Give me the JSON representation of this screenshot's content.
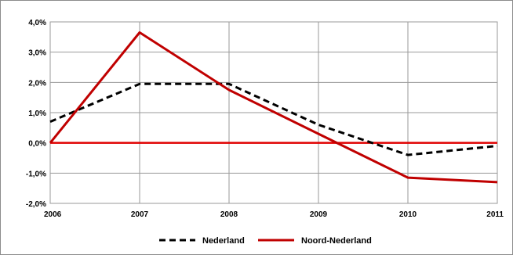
{
  "chart_data": {
    "type": "line",
    "x": [
      "2006",
      "2007",
      "2008",
      "2009",
      "2010",
      "2011"
    ],
    "ylim": [
      -2.0,
      4.0
    ],
    "yticks": [
      "4,0%",
      "3,0%",
      "2,0%",
      "1,0%",
      "0,0%",
      "-1,0%",
      "-2,0%"
    ],
    "ytick_values": [
      4.0,
      3.0,
      2.0,
      1.0,
      0.0,
      -1.0,
      -2.0
    ],
    "grid": true,
    "legend_position": "bottom",
    "reference_line": {
      "y": 0.0,
      "color": "#e00000"
    },
    "series": [
      {
        "name": "Nederland",
        "color": "#000000",
        "style": "dashed",
        "values": [
          0.7,
          1.95,
          1.95,
          0.6,
          -0.4,
          -0.1
        ]
      },
      {
        "name": "Noord-Nederland",
        "color": "#c00000",
        "style": "solid",
        "values": [
          0.0,
          3.65,
          1.75,
          0.3,
          -1.15,
          -1.3
        ]
      }
    ]
  }
}
